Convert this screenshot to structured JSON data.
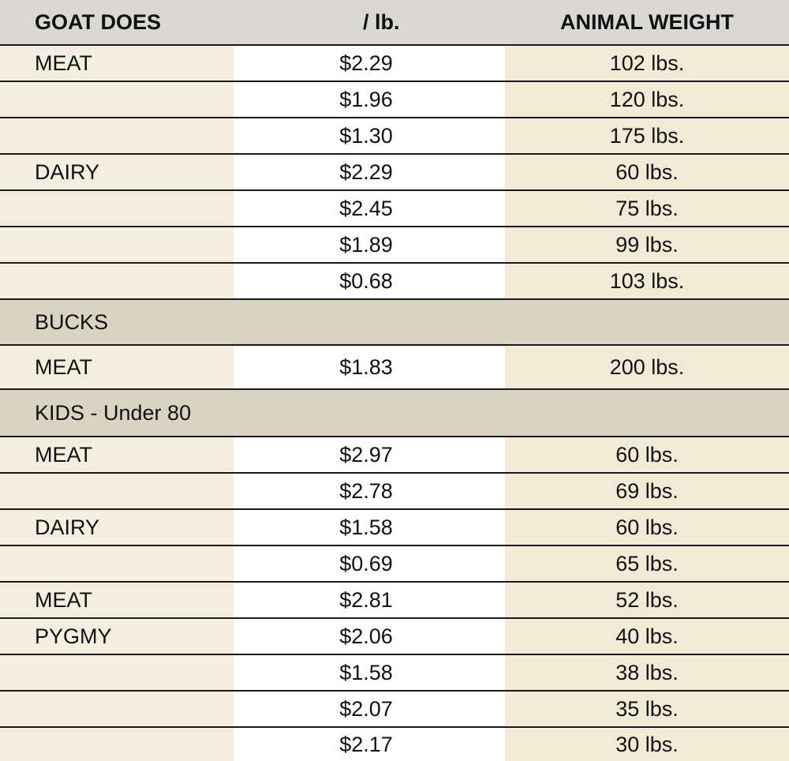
{
  "table": {
    "headers": {
      "col1": "GOAT DOES",
      "col2": "/ lb.",
      "col3": "ANIMAL WEIGHT"
    },
    "rows": [
      {
        "label": "MEAT",
        "price": "$2.29",
        "weight": "102 lbs."
      },
      {
        "label": "",
        "price": "$1.96",
        "weight": "120 lbs."
      },
      {
        "label": "",
        "price": "$1.30",
        "weight": "175 lbs."
      },
      {
        "label": "DAIRY",
        "price": "$2.29",
        "weight": "60 lbs."
      },
      {
        "label": "",
        "price": "$2.45",
        "weight": "75 lbs."
      },
      {
        "label": "",
        "price": "$1.89",
        "weight": "99 lbs."
      },
      {
        "label": "",
        "price": "$0.68",
        "weight": "103 lbs."
      },
      {
        "section": "BUCKS"
      },
      {
        "label": "MEAT",
        "price": "$1.83",
        "weight": "200 lbs."
      },
      {
        "section": "KIDS - Under 80"
      },
      {
        "label": "MEAT",
        "price": "$2.97",
        "weight": "60 lbs."
      },
      {
        "label": "",
        "price": "$2.78",
        "weight": "69 lbs."
      },
      {
        "label": "DAIRY",
        "price": "$1.58",
        "weight": "60 lbs."
      },
      {
        "label": "",
        "price": "$0.69",
        "weight": "65 lbs."
      },
      {
        "label": "MEAT",
        "price": "$2.81",
        "weight": "52 lbs."
      },
      {
        "label": "PYGMY",
        "price": "$2.06",
        "weight": "40 lbs."
      },
      {
        "label": "",
        "price": "$1.58",
        "weight": "38 lbs."
      },
      {
        "label": "",
        "price": "$2.07",
        "weight": "35 lbs."
      },
      {
        "label": "",
        "price": "$2.17",
        "weight": "30 lbs."
      }
    ]
  },
  "colors": {
    "header_bg": "#d9d8d4",
    "section_bg": "#d9d3c2",
    "label_col_bg": "#f3eee0",
    "price_col_bg": "#ffffff",
    "weight_col_bg": "#f1ead6",
    "rule": "#1a1a1a"
  }
}
